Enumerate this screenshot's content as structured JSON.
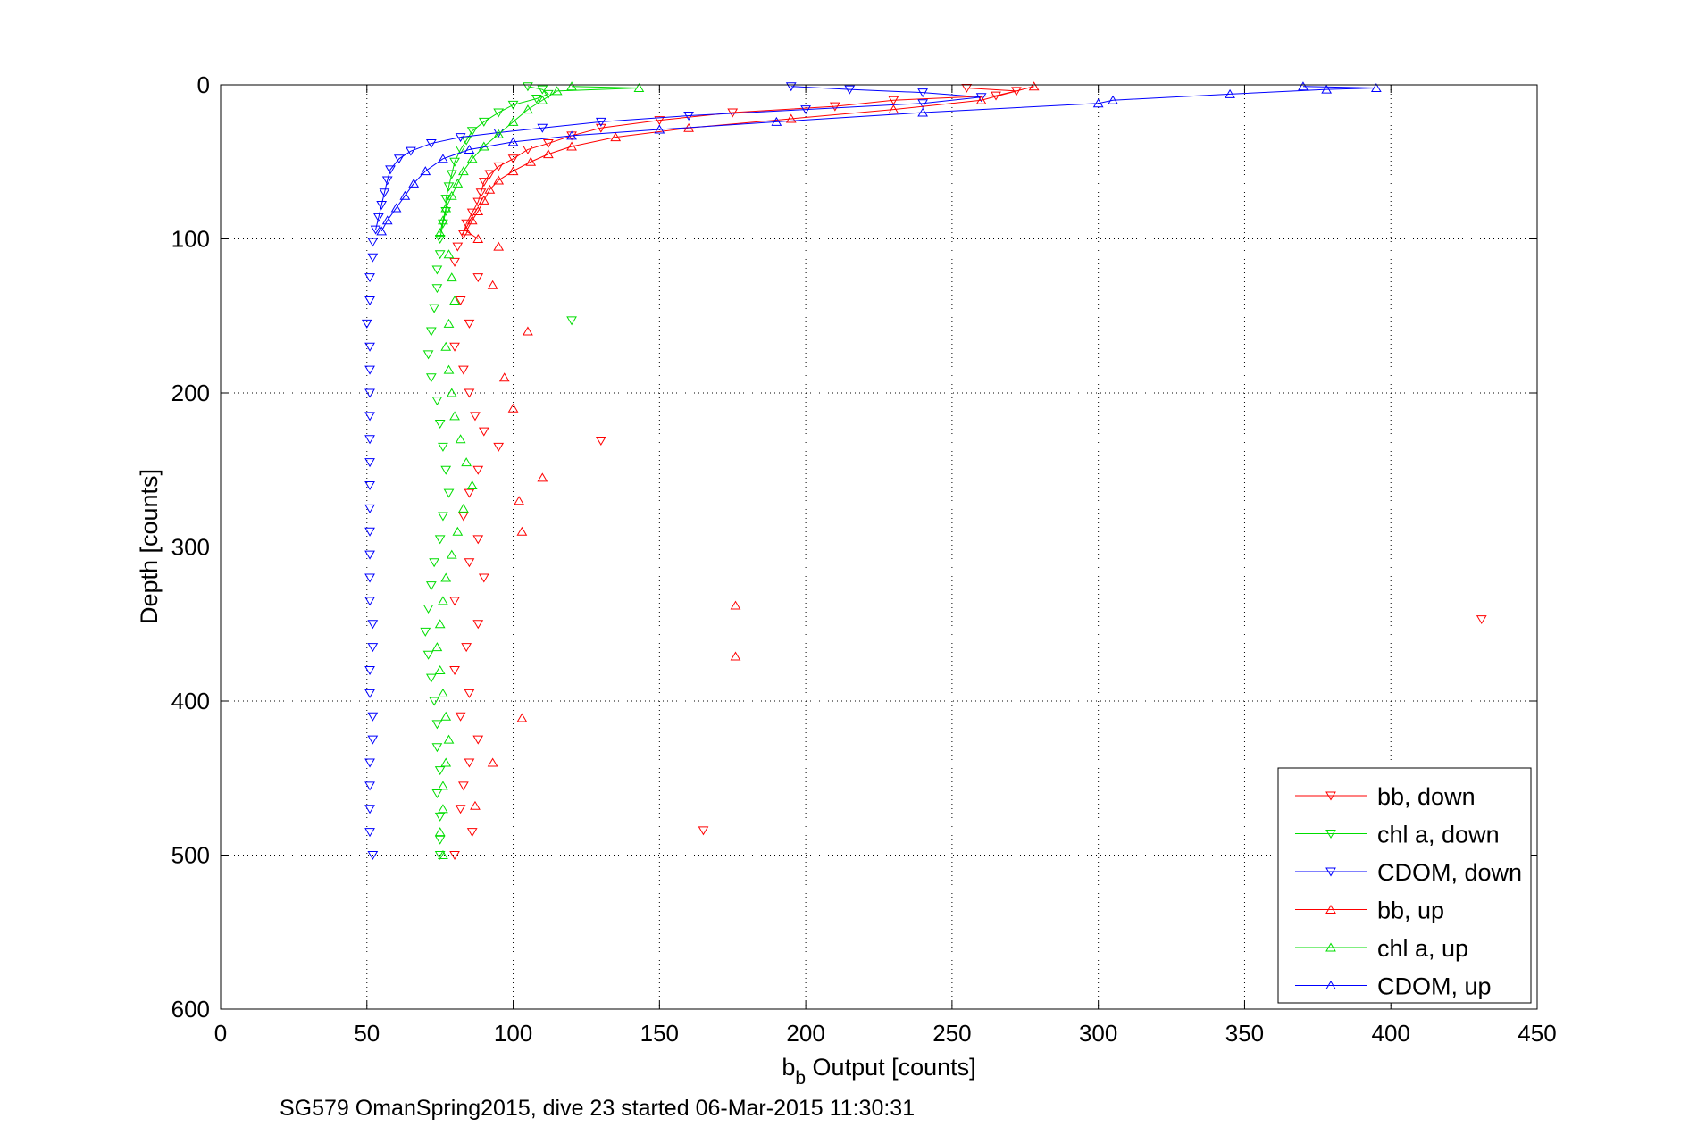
{
  "chart_data": {
    "type": "scatter",
    "xlabel_main": "b",
    "xlabel_sub": "b",
    "xlabel_rest": " Output [counts]",
    "ylabel": "Depth [counts]",
    "caption": "SG579 OmanSpring2015, dive 23 started 06-Mar-2015 11:30:31",
    "xlim": [
      0,
      450
    ],
    "ylim": [
      0,
      600
    ],
    "y_reversed": true,
    "grid": true,
    "legend_position": "lower-right",
    "x_ticks": [
      "0",
      "50",
      "100",
      "150",
      "200",
      "250",
      "300",
      "350",
      "400",
      "450"
    ],
    "y_ticks": [
      "0",
      "100",
      "200",
      "300",
      "400",
      "500",
      "600"
    ],
    "series": [
      {
        "name": "bb, down",
        "color": "#ff0000",
        "marker": "triangle-down",
        "points": [
          [
            255,
            2
          ],
          [
            272,
            4
          ],
          [
            265,
            7
          ],
          [
            230,
            10
          ],
          [
            210,
            14
          ],
          [
            175,
            18
          ],
          [
            150,
            23
          ],
          [
            130,
            28
          ],
          [
            120,
            33
          ],
          [
            112,
            38
          ],
          [
            105,
            42
          ],
          [
            100,
            48
          ],
          [
            95,
            53
          ],
          [
            92,
            58
          ],
          [
            90,
            63
          ],
          [
            89,
            70
          ],
          [
            88,
            76
          ],
          [
            86,
            83
          ],
          [
            84,
            90
          ],
          [
            83,
            97
          ],
          [
            81,
            105
          ],
          [
            80,
            115
          ],
          [
            88,
            125
          ],
          [
            82,
            140
          ],
          [
            85,
            155
          ],
          [
            80,
            170
          ],
          [
            83,
            185
          ],
          [
            85,
            200
          ],
          [
            87,
            215
          ],
          [
            90,
            225
          ],
          [
            95,
            235
          ],
          [
            130,
            231
          ],
          [
            88,
            250
          ],
          [
            85,
            265
          ],
          [
            83,
            280
          ],
          [
            88,
            295
          ],
          [
            85,
            310
          ],
          [
            90,
            320
          ],
          [
            80,
            335
          ],
          [
            88,
            350
          ],
          [
            431,
            347
          ],
          [
            84,
            365
          ],
          [
            80,
            380
          ],
          [
            85,
            395
          ],
          [
            82,
            410
          ],
          [
            88,
            425
          ],
          [
            85,
            440
          ],
          [
            83,
            455
          ],
          [
            82,
            470
          ],
          [
            86,
            485
          ],
          [
            165,
            484
          ],
          [
            80,
            500
          ]
        ]
      },
      {
        "name": "chl a, down",
        "color": "#00dd00",
        "marker": "triangle-down",
        "points": [
          [
            105,
            1
          ],
          [
            110,
            3
          ],
          [
            112,
            6
          ],
          [
            108,
            9
          ],
          [
            100,
            13
          ],
          [
            95,
            18
          ],
          [
            90,
            24
          ],
          [
            86,
            30
          ],
          [
            84,
            36
          ],
          [
            82,
            42
          ],
          [
            80,
            50
          ],
          [
            79,
            58
          ],
          [
            78,
            66
          ],
          [
            77,
            74
          ],
          [
            77,
            82
          ],
          [
            76,
            90
          ],
          [
            75,
            100
          ],
          [
            75,
            110
          ],
          [
            74,
            120
          ],
          [
            74,
            132
          ],
          [
            73,
            145
          ],
          [
            120,
            153
          ],
          [
            72,
            160
          ],
          [
            71,
            175
          ],
          [
            72,
            190
          ],
          [
            74,
            205
          ],
          [
            75,
            220
          ],
          [
            76,
            235
          ],
          [
            77,
            250
          ],
          [
            78,
            265
          ],
          [
            76,
            280
          ],
          [
            75,
            295
          ],
          [
            73,
            310
          ],
          [
            72,
            325
          ],
          [
            71,
            340
          ],
          [
            70,
            355
          ],
          [
            71,
            370
          ],
          [
            72,
            385
          ],
          [
            73,
            400
          ],
          [
            74,
            415
          ],
          [
            74,
            430
          ],
          [
            75,
            445
          ],
          [
            74,
            460
          ],
          [
            75,
            475
          ],
          [
            75,
            490
          ],
          [
            75,
            500
          ]
        ]
      },
      {
        "name": "CDOM, down",
        "color": "#0000ff",
        "marker": "triangle-down",
        "points": [
          [
            195,
            1
          ],
          [
            215,
            3
          ],
          [
            240,
            5
          ],
          [
            260,
            8
          ],
          [
            240,
            12
          ],
          [
            200,
            16
          ],
          [
            160,
            20
          ],
          [
            130,
            24
          ],
          [
            110,
            28
          ],
          [
            95,
            31
          ],
          [
            82,
            34
          ],
          [
            72,
            38
          ],
          [
            65,
            43
          ],
          [
            61,
            48
          ],
          [
            58,
            55
          ],
          [
            57,
            62
          ],
          [
            56,
            70
          ],
          [
            55,
            78
          ],
          [
            54,
            86
          ],
          [
            53,
            94
          ],
          [
            52,
            102
          ],
          [
            52,
            112
          ],
          [
            51,
            125
          ],
          [
            51,
            140
          ],
          [
            50,
            155
          ],
          [
            51,
            170
          ],
          [
            51,
            185
          ],
          [
            51,
            200
          ],
          [
            51,
            215
          ],
          [
            51,
            230
          ],
          [
            51,
            245
          ],
          [
            51,
            260
          ],
          [
            51,
            275
          ],
          [
            51,
            290
          ],
          [
            51,
            305
          ],
          [
            51,
            320
          ],
          [
            51,
            335
          ],
          [
            52,
            350
          ],
          [
            52,
            365
          ],
          [
            51,
            380
          ],
          [
            51,
            395
          ],
          [
            52,
            410
          ],
          [
            52,
            425
          ],
          [
            51,
            440
          ],
          [
            51,
            455
          ],
          [
            51,
            470
          ],
          [
            51,
            485
          ],
          [
            52,
            500
          ]
        ]
      },
      {
        "name": "bb, up",
        "color": "#ff0000",
        "marker": "triangle-up",
        "points": [
          [
            88,
            100
          ],
          [
            84,
            95
          ],
          [
            86,
            88
          ],
          [
            88,
            82
          ],
          [
            90,
            75
          ],
          [
            92,
            68
          ],
          [
            95,
            62
          ],
          [
            100,
            56
          ],
          [
            106,
            50
          ],
          [
            112,
            45
          ],
          [
            120,
            40
          ],
          [
            135,
            34
          ],
          [
            160,
            28
          ],
          [
            195,
            22
          ],
          [
            230,
            16
          ],
          [
            260,
            10
          ],
          [
            278,
            1
          ],
          [
            95,
            105
          ],
          [
            105,
            160
          ],
          [
            93,
            130
          ],
          [
            97,
            190
          ],
          [
            100,
            210
          ],
          [
            110,
            255
          ],
          [
            102,
            270
          ],
          [
            103,
            290
          ],
          [
            176,
            338
          ],
          [
            176,
            371
          ],
          [
            103,
            411
          ],
          [
            93,
            440
          ],
          [
            87,
            468
          ]
        ]
      },
      {
        "name": "chl a, up",
        "color": "#00dd00",
        "marker": "triangle-up",
        "points": [
          [
            75,
            96
          ],
          [
            76,
            88
          ],
          [
            77,
            80
          ],
          [
            79,
            72
          ],
          [
            81,
            64
          ],
          [
            83,
            56
          ],
          [
            86,
            48
          ],
          [
            90,
            40
          ],
          [
            95,
            32
          ],
          [
            100,
            24
          ],
          [
            105,
            16
          ],
          [
            110,
            10
          ],
          [
            115,
            4
          ],
          [
            120,
            1
          ],
          [
            143,
            2
          ],
          [
            78,
            110
          ],
          [
            79,
            125
          ],
          [
            80,
            140
          ],
          [
            78,
            155
          ],
          [
            77,
            170
          ],
          [
            78,
            185
          ],
          [
            79,
            200
          ],
          [
            80,
            215
          ],
          [
            82,
            230
          ],
          [
            84,
            245
          ],
          [
            86,
            260
          ],
          [
            83,
            275
          ],
          [
            81,
            290
          ],
          [
            79,
            305
          ],
          [
            77,
            320
          ],
          [
            76,
            335
          ],
          [
            75,
            350
          ],
          [
            74,
            365
          ],
          [
            75,
            380
          ],
          [
            76,
            395
          ],
          [
            77,
            410
          ],
          [
            78,
            425
          ],
          [
            77,
            440
          ],
          [
            76,
            455
          ],
          [
            76,
            470
          ],
          [
            75,
            485
          ],
          [
            76,
            500
          ]
        ]
      },
      {
        "name": "CDOM, up",
        "color": "#0000ff",
        "marker": "triangle-up",
        "points": [
          [
            55,
            95
          ],
          [
            57,
            88
          ],
          [
            60,
            80
          ],
          [
            63,
            72
          ],
          [
            66,
            64
          ],
          [
            70,
            56
          ],
          [
            76,
            48
          ],
          [
            85,
            42
          ],
          [
            100,
            37
          ],
          [
            120,
            33
          ],
          [
            150,
            29
          ],
          [
            190,
            24
          ],
          [
            240,
            18
          ],
          [
            300,
            12
          ],
          [
            345,
            6
          ],
          [
            395,
            2
          ],
          [
            370,
            1
          ],
          [
            378,
            3
          ],
          [
            305,
            10
          ]
        ]
      }
    ]
  }
}
